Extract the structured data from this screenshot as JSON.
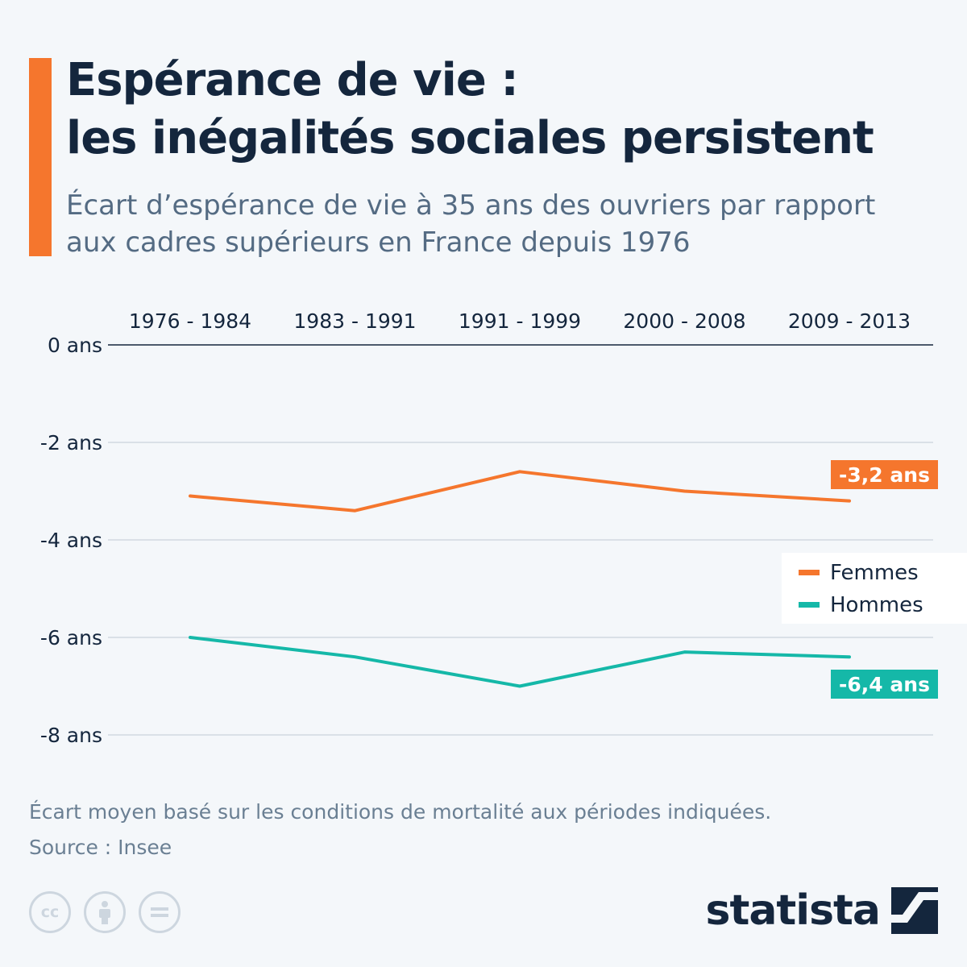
{
  "header": {
    "title_line1": "Espérance de vie :",
    "title_line2": "les inégalités sociales persistent",
    "subtitle_line1": "Écart d’espérance de vie à 35 ans des ouvriers par rapport",
    "subtitle_line2": "aux cadres supérieurs en France depuis 1976",
    "accent_color": "#f5762d"
  },
  "chart_data": {
    "type": "line",
    "categories": [
      "1976 - 1984",
      "1983 - 1991",
      "1991 - 1999",
      "2000 - 2008",
      "2009 - 2013"
    ],
    "y_ticks": [
      {
        "value": 0,
        "label": "0 ans"
      },
      {
        "value": -2,
        "label": "-2 ans"
      },
      {
        "value": -4,
        "label": "-4 ans"
      },
      {
        "value": -6,
        "label": "-6 ans"
      },
      {
        "value": -8,
        "label": "-8 ans"
      }
    ],
    "ylim": [
      -8,
      0
    ],
    "grid": true,
    "legend_position": "right",
    "series": [
      {
        "name": "Femmes",
        "color": "#f5762d",
        "values": [
          -3.1,
          -3.4,
          -2.6,
          -3.0,
          -3.2
        ],
        "end_label": "-3,2 ans"
      },
      {
        "name": "Hommes",
        "color": "#15b8a8",
        "values": [
          -6.0,
          -6.4,
          -7.0,
          -6.3,
          -6.4
        ],
        "end_label": "-6,4 ans"
      }
    ]
  },
  "footer": {
    "note": "Écart moyen basé sur les conditions de mortalité aux périodes indiquées.",
    "source": "Source : Insee",
    "license_icons": [
      "cc",
      "by",
      "nd"
    ],
    "brand": "statista"
  }
}
